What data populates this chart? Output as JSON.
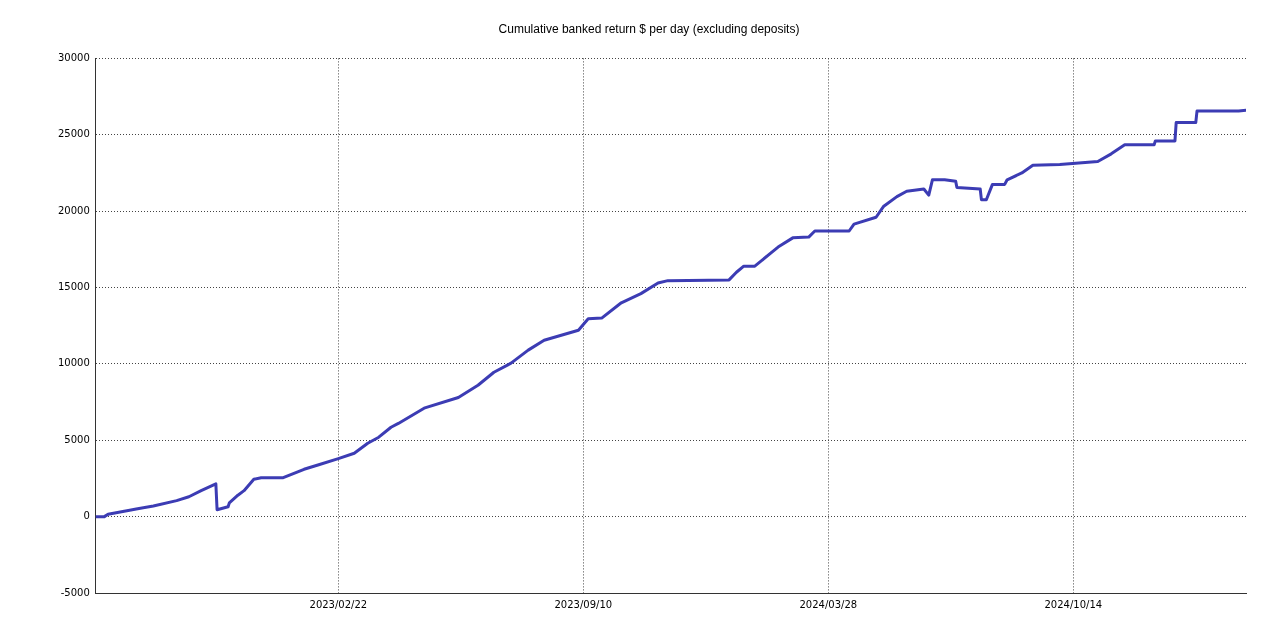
{
  "chart_data": {
    "type": "line",
    "title": "Cumulative banked return $ per day (excluding deposits)",
    "x": [
      "2022-08-08",
      "2022-08-15",
      "2022-08-18",
      "2022-09-10",
      "2022-09-24",
      "2022-10-13",
      "2022-10-23",
      "2022-11-02",
      "2022-11-14",
      "2022-11-15",
      "2022-11-24",
      "2022-11-25",
      "2022-12-02",
      "2022-12-07",
      "2022-12-15",
      "2022-12-21",
      "2023-01-08",
      "2023-01-25",
      "2023-02-06",
      "2023-02-22",
      "2023-03-07",
      "2023-03-18",
      "2023-03-27",
      "2023-04-06",
      "2023-04-12",
      "2023-05-03",
      "2023-05-31",
      "2023-06-16",
      "2023-06-29",
      "2023-07-13",
      "2023-07-27",
      "2023-08-09",
      "2023-09-06",
      "2023-09-14",
      "2023-09-25",
      "2023-10-11",
      "2023-10-27",
      "2023-11-10",
      "2023-11-18",
      "2024-01-07",
      "2024-01-13",
      "2024-01-19",
      "2024-01-28",
      "2024-02-16",
      "2024-02-28",
      "2024-03-12",
      "2024-03-17",
      "2024-04-14",
      "2024-04-18",
      "2024-05-06",
      "2024-05-12",
      "2024-05-23",
      "2024-05-31",
      "2024-06-14",
      "2024-06-18",
      "2024-06-21",
      "2024-07-01",
      "2024-07-10",
      "2024-07-11",
      "2024-07-30",
      "2024-07-31",
      "2024-08-04",
      "2024-08-09",
      "2024-08-19",
      "2024-08-21",
      "2024-09-02",
      "2024-09-11",
      "2024-10-03",
      "2024-11-03",
      "2024-11-14",
      "2024-11-25",
      "2024-12-19",
      "2024-12-20",
      "2025-01-05",
      "2025-01-06",
      "2025-01-22",
      "2025-01-23",
      "2025-02-26",
      "2025-03-04"
    ],
    "series": [
      {
        "color": "#3c3cb4",
        "values": [
          0,
          0,
          150,
          500,
          700,
          1050,
          1300,
          1700,
          2150,
          450,
          650,
          900,
          1400,
          1700,
          2450,
          2550,
          2550,
          3100,
          3400,
          3800,
          4150,
          4800,
          5200,
          5850,
          6100,
          7100,
          7800,
          8600,
          9450,
          10050,
          10900,
          11550,
          12200,
          12950,
          13000,
          14000,
          14600,
          15300,
          15450,
          15500,
          16000,
          16400,
          16400,
          17650,
          18250,
          18300,
          18700,
          18700,
          19150,
          19600,
          20300,
          20950,
          21300,
          21450,
          21050,
          22050,
          22050,
          21950,
          21550,
          21450,
          20750,
          20750,
          21750,
          21750,
          22050,
          22500,
          23000,
          23050,
          23250,
          23750,
          24350,
          24350,
          24600,
          24600,
          25800,
          25800,
          26550,
          26550,
          26600
        ]
      }
    ],
    "xlim": [
      "2022-08-08",
      "2025-03-04"
    ],
    "xticks": [
      {
        "value": "2023-02-22",
        "label": "2023/02/22"
      },
      {
        "value": "2023-09-10",
        "label": "2023/09/10"
      },
      {
        "value": "2024-03-28",
        "label": "2024/03/28"
      },
      {
        "value": "2024-10-14",
        "label": "2024/10/14"
      }
    ],
    "ylim": [
      -5000,
      30000
    ],
    "yticks": [
      -5000,
      0,
      5000,
      10000,
      15000,
      20000,
      25000,
      30000
    ],
    "grid": true,
    "legend": false,
    "marker": "none",
    "line_style": "solid"
  }
}
